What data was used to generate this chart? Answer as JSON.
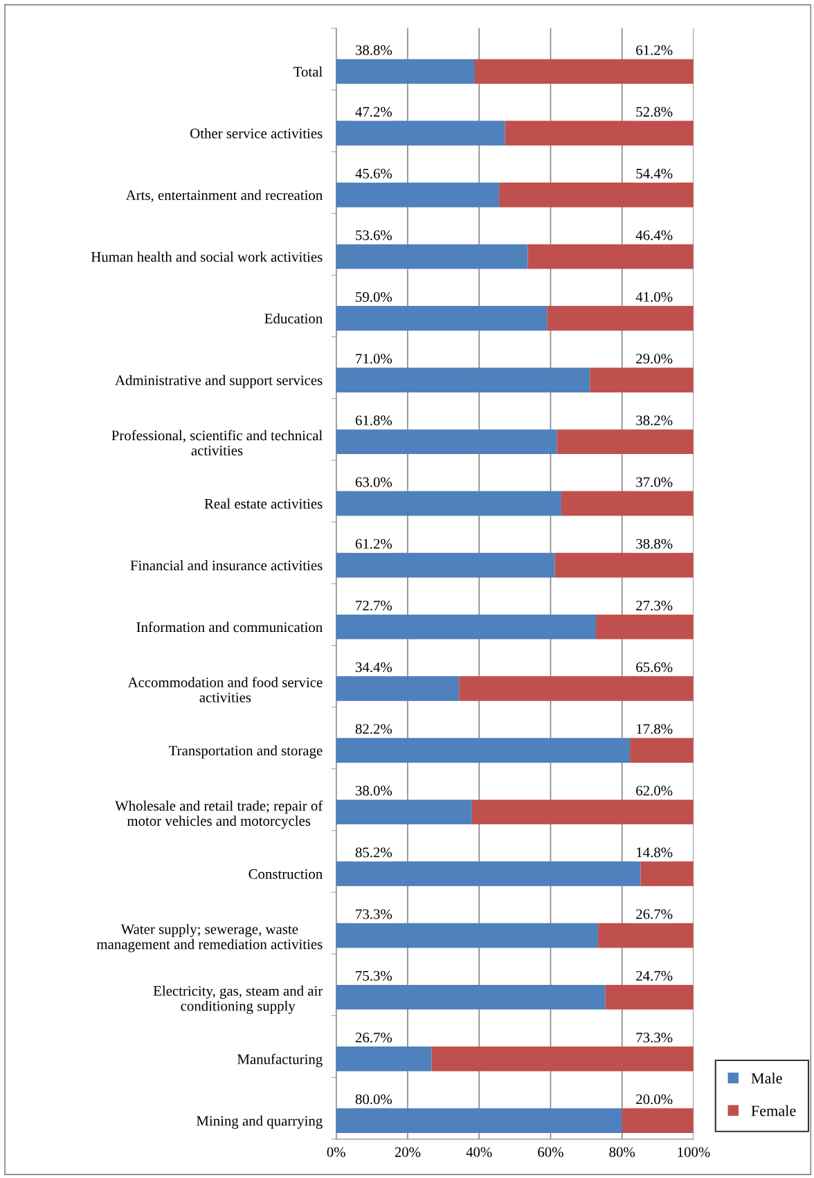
{
  "chart_data": {
    "type": "bar",
    "orientation": "horizontal",
    "stacked": true,
    "categories": [
      "Total",
      "Other service activities",
      "Arts, entertainment and recreation",
      "Human health and social work activities",
      "Education",
      "Administrative and support services",
      "Professional, scientific and technical\nactivities",
      "Real estate activities",
      "Financial and insurance activities",
      "Information and communication",
      "Accommodation and food service\nactivities",
      "Transportation and storage",
      "Wholesale and retail trade; repair of\nmotor vehicles and motorcycles",
      "Construction",
      "Water supply; sewerage, waste\nmanagement and remediation activities",
      "Electricity, gas, steam and air\nconditioning supply",
      "Manufacturing",
      "Mining and quarrying"
    ],
    "series": [
      {
        "name": "Male",
        "color": "#4f81bd",
        "values": [
          38.8,
          47.2,
          45.6,
          53.6,
          59.0,
          71.0,
          61.8,
          63.0,
          61.2,
          72.7,
          34.4,
          82.2,
          38.0,
          85.2,
          73.3,
          75.3,
          26.7,
          80.0
        ],
        "value_labels": [
          "38.8%",
          "47.2%",
          "45.6%",
          "53.6%",
          "59.0%",
          "71.0%",
          "61.8%",
          "63.0%",
          "61.2%",
          "72.7%",
          "34.4%",
          "82.2%",
          "38.0%",
          "85.2%",
          "73.3%",
          "75.3%",
          "26.7%",
          "80.0%"
        ]
      },
      {
        "name": "Female",
        "color": "#c0504d",
        "values": [
          61.2,
          52.8,
          54.4,
          46.4,
          41.0,
          29.0,
          38.2,
          37.0,
          38.8,
          27.3,
          65.6,
          17.8,
          62.0,
          14.8,
          26.7,
          24.7,
          73.3,
          20.0
        ],
        "value_labels": [
          "61.2%",
          "52.8%",
          "54.4%",
          "46.4%",
          "41.0%",
          "29.0%",
          "38.2%",
          "37.0%",
          "38.8%",
          "27.3%",
          "65.6%",
          "17.8%",
          "62.0%",
          "14.8%",
          "26.7%",
          "24.7%",
          "73.3%",
          "20.0%"
        ]
      }
    ],
    "xlim": [
      0,
      100
    ],
    "xticks": [
      {
        "value": 0,
        "label": "0%"
      },
      {
        "value": 20,
        "label": "20%"
      },
      {
        "value": 40,
        "label": "40%"
      },
      {
        "value": 60,
        "label": "60%"
      },
      {
        "value": 80,
        "label": "80%"
      },
      {
        "value": 100,
        "label": "100%"
      }
    ],
    "grid": "x",
    "legend": "bottom right"
  }
}
